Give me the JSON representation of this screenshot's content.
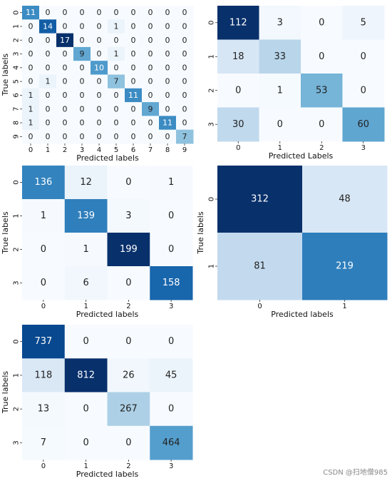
{
  "page": {
    "watermark": "CSDN @扫地僧985"
  },
  "chart_data": [
    {
      "type": "heatmap",
      "colormap": "Blues",
      "xlabel": "Predicted labels",
      "ylabel": "True labels",
      "x_ticks": [
        "0",
        "1",
        "2",
        "3",
        "4",
        "5",
        "6",
        "7",
        "8",
        "9"
      ],
      "y_ticks": [
        "0",
        "1",
        "2",
        "3",
        "4",
        "5",
        "6",
        "7",
        "8",
        "9"
      ],
      "matrix": [
        [
          11,
          0,
          0,
          0,
          0,
          0,
          0,
          0,
          0,
          0
        ],
        [
          0,
          14,
          0,
          0,
          0,
          1,
          0,
          0,
          0,
          0
        ],
        [
          0,
          0,
          17,
          0,
          0,
          0,
          0,
          0,
          0,
          0
        ],
        [
          0,
          0,
          0,
          9,
          0,
          1,
          0,
          0,
          0,
          0
        ],
        [
          0,
          0,
          0,
          0,
          10,
          0,
          0,
          0,
          0,
          0
        ],
        [
          0,
          1,
          0,
          0,
          0,
          7,
          0,
          0,
          0,
          0
        ],
        [
          1,
          0,
          0,
          0,
          0,
          0,
          11,
          0,
          0,
          0
        ],
        [
          1,
          0,
          0,
          0,
          0,
          0,
          0,
          9,
          0,
          0
        ],
        [
          1,
          0,
          0,
          0,
          0,
          0,
          0,
          0,
          11,
          0
        ],
        [
          0,
          0,
          0,
          0,
          0,
          0,
          0,
          0,
          0,
          7
        ]
      ]
    },
    {
      "type": "heatmap",
      "colormap": "Blues",
      "xlabel": "Predicted Labels",
      "ylabel": "",
      "x_ticks": [
        "0",
        "1",
        "2",
        "3"
      ],
      "y_ticks": [
        "0",
        "1",
        "2",
        "3"
      ],
      "matrix": [
        [
          112,
          3,
          0,
          5
        ],
        [
          18,
          33,
          0,
          0
        ],
        [
          0,
          1,
          53,
          0
        ],
        [
          30,
          0,
          0,
          60
        ]
      ]
    },
    {
      "type": "heatmap",
      "colormap": "Blues",
      "xlabel": "Predicted labels",
      "ylabel": "True labels",
      "x_ticks": [
        "0",
        "1",
        "2",
        "3"
      ],
      "y_ticks": [
        "0",
        "1",
        "2",
        "3"
      ],
      "matrix": [
        [
          136,
          12,
          0,
          1
        ],
        [
          1,
          139,
          3,
          0
        ],
        [
          0,
          1,
          199,
          0
        ],
        [
          0,
          6,
          0,
          158
        ]
      ]
    },
    {
      "type": "heatmap",
      "colormap": "Blues",
      "xlabel": "Predicted labels",
      "ylabel": "True labels",
      "x_ticks": [
        "0",
        "1"
      ],
      "y_ticks": [
        "0",
        "1"
      ],
      "matrix": [
        [
          312,
          48
        ],
        [
          81,
          219
        ]
      ]
    },
    {
      "type": "heatmap",
      "colormap": "Blues",
      "xlabel": "Predicted labels",
      "ylabel": "True labels",
      "x_ticks": [
        "0",
        "1",
        "2",
        "3"
      ],
      "y_ticks": [
        "0",
        "1",
        "2",
        "3"
      ],
      "matrix": [
        [
          737,
          0,
          0,
          0
        ],
        [
          118,
          812,
          26,
          45
        ],
        [
          13,
          0,
          267,
          0
        ],
        [
          7,
          0,
          0,
          464
        ]
      ]
    }
  ]
}
